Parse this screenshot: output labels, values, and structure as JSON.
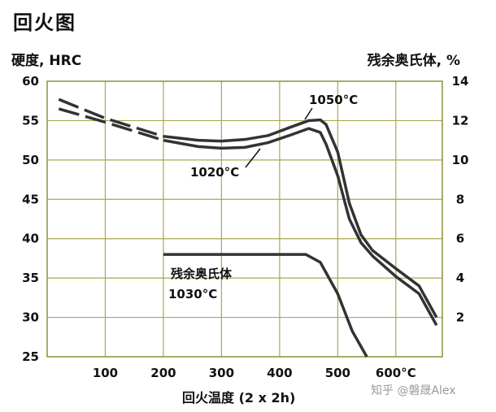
{
  "title": "回火图",
  "watermark": "知乎 @磐晟Alex",
  "chart_data": {
    "type": "line",
    "xlabel": "回火温度 (2 x 2h)",
    "ylabel_left": "硬度, HRC",
    "ylabel_right": "残余奥氏体, %",
    "xlim": [
      0,
      680
    ],
    "ylim_left": [
      25,
      60
    ],
    "ylim_right": [
      0,
      14
    ],
    "x_ticks": [
      100,
      200,
      300,
      400,
      500,
      600
    ],
    "x_tick_labels": [
      "100",
      "200",
      "300",
      "400",
      "500",
      "600°C"
    ],
    "y_left_ticks": [
      25,
      30,
      35,
      40,
      45,
      50,
      55,
      60
    ],
    "y_right_ticks": [
      2,
      4,
      6,
      8,
      10,
      12,
      14
    ],
    "grid": true,
    "series": [
      {
        "name": "1050°C",
        "axis": "left",
        "x": [
          20,
          100,
          200,
          260,
          300,
          340,
          380,
          420,
          450,
          470,
          480,
          500,
          520,
          540,
          560,
          600,
          640,
          670
        ],
        "y": [
          57.7,
          55.3,
          53.0,
          52.5,
          52.4,
          52.6,
          53.1,
          54.2,
          55.0,
          55.1,
          54.5,
          51.0,
          44.5,
          40.5,
          38.5,
          36.2,
          34.0,
          30.0
        ],
        "dashed_until": 190
      },
      {
        "name": "1020°C",
        "axis": "left",
        "x": [
          20,
          100,
          200,
          260,
          300,
          340,
          380,
          420,
          450,
          470,
          480,
          500,
          520,
          540,
          560,
          600,
          640,
          670
        ],
        "y": [
          56.5,
          54.8,
          52.5,
          51.7,
          51.5,
          51.6,
          52.2,
          53.2,
          54.0,
          53.5,
          52.0,
          48.0,
          42.5,
          39.5,
          37.8,
          35.2,
          33.0,
          29.0
        ],
        "dashed_until": 190
      },
      {
        "name": "残余奥氏体 1030°C",
        "axis": "right",
        "x": [
          200,
          300,
          400,
          445,
          470,
          500,
          525,
          550
        ],
        "y": [
          5.2,
          5.2,
          5.2,
          5.2,
          4.8,
          3.2,
          1.3,
          0.0
        ]
      }
    ],
    "annotations": [
      "1050°C",
      "1020°C",
      "残余奥氏体",
      "1030°C"
    ]
  }
}
